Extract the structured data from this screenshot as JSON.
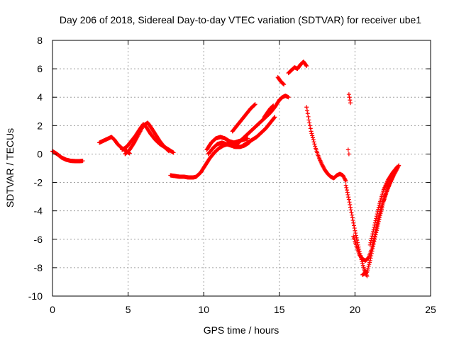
{
  "chart_data": {
    "type": "scatter",
    "title": "Day 206 of 2018, Sidereal Day-to-day VTEC variation (SDTVAR) for receiver ube1",
    "xlabel": "GPS time / hours",
    "ylabel": "SDTVAR / TECUs",
    "xlim": [
      0,
      25
    ],
    "ylim": [
      -10,
      8
    ],
    "xticks": [
      0,
      5,
      10,
      15,
      20,
      25
    ],
    "yticks": [
      -10,
      -8,
      -6,
      -4,
      -2,
      0,
      2,
      4,
      6,
      8
    ],
    "grid": true,
    "marker": "plus",
    "color": "#ff0000",
    "segments": [
      {
        "x": [
          0.0,
          0.3,
          0.6,
          0.9,
          1.2,
          1.5,
          1.8,
          2.0
        ],
        "y": [
          0.2,
          0.0,
          -0.25,
          -0.4,
          -0.48,
          -0.5,
          -0.5,
          -0.48
        ]
      },
      {
        "x": [
          3.1,
          3.4,
          3.7,
          3.9,
          4.1,
          4.3,
          4.6,
          4.9,
          5.1
        ],
        "y": [
          0.8,
          0.95,
          1.1,
          1.2,
          1.0,
          0.7,
          0.4,
          0.2,
          0.05
        ]
      },
      {
        "x": [
          4.6,
          4.9,
          5.2,
          5.5,
          5.8,
          6.0,
          6.2,
          6.5,
          6.8,
          7.1,
          7.4,
          7.7,
          8.0
        ],
        "y": [
          0.3,
          0.5,
          0.9,
          1.3,
          1.8,
          2.1,
          1.9,
          1.4,
          1.0,
          0.7,
          0.5,
          0.3,
          0.1
        ]
      },
      {
        "x": [
          4.8,
          5.1,
          5.4,
          5.7,
          6.0,
          6.3,
          6.5,
          6.8,
          7.1,
          7.4,
          7.7
        ],
        "y": [
          0.0,
          0.3,
          0.8,
          1.4,
          2.0,
          2.2,
          1.9,
          1.4,
          0.9,
          0.5,
          0.2
        ]
      },
      {
        "x": [
          7.8,
          8.1,
          8.4,
          8.7,
          9.0,
          9.3,
          9.5,
          9.8,
          10.1,
          10.4,
          10.7,
          11.0,
          11.3,
          11.6,
          12.0,
          12.3,
          12.6,
          12.9
        ],
        "y": [
          -1.5,
          -1.55,
          -1.6,
          -1.6,
          -1.65,
          -1.65,
          -1.6,
          -1.3,
          -0.8,
          -0.3,
          0.1,
          0.4,
          0.6,
          0.7,
          0.8,
          0.9,
          1.0,
          1.1
        ]
      },
      {
        "x": [
          10.2,
          10.5,
          10.8,
          11.1,
          11.4,
          11.7,
          12.0
        ],
        "y": [
          0.3,
          0.8,
          1.1,
          1.2,
          1.1,
          0.9,
          0.8
        ]
      },
      {
        "x": [
          10.3,
          10.6,
          10.9,
          11.2,
          11.5,
          11.8,
          12.1,
          12.4,
          12.7,
          13.0
        ],
        "y": [
          0.0,
          0.4,
          0.7,
          0.8,
          0.7,
          0.6,
          0.5,
          0.5,
          0.6,
          0.8
        ]
      },
      {
        "x": [
          11.9,
          12.2,
          12.5,
          12.8,
          13.1,
          13.4
        ],
        "y": [
          1.6,
          2.0,
          2.4,
          2.8,
          3.2,
          3.5
        ]
      },
      {
        "x": [
          12.0,
          12.3,
          12.6,
          12.9,
          13.2,
          13.5,
          13.8,
          14.1,
          14.4,
          14.7,
          15.0
        ],
        "y": [
          0.5,
          0.8,
          1.1,
          1.4,
          1.7,
          2.0,
          2.3,
          2.6,
          2.9,
          3.3,
          3.8
        ]
      },
      {
        "x": [
          12.6,
          12.9,
          13.2,
          13.5,
          13.8,
          14.1,
          14.4,
          14.7
        ],
        "y": [
          0.6,
          0.8,
          1.0,
          1.2,
          1.5,
          1.8,
          2.2,
          2.6
        ]
      },
      {
        "x": [
          14.0,
          14.2,
          14.4,
          14.6
        ],
        "y": [
          2.6,
          2.9,
          3.2,
          3.4
        ]
      },
      {
        "x": [
          14.9,
          15.1,
          15.3
        ],
        "y": [
          5.4,
          5.1,
          4.9
        ]
      },
      {
        "x": [
          15.0,
          15.2,
          15.4,
          15.6
        ],
        "y": [
          3.8,
          4.0,
          4.1,
          4.0
        ]
      },
      {
        "x": [
          15.6,
          15.8,
          16.0,
          16.2,
          16.4,
          16.6,
          16.8
        ],
        "y": [
          5.7,
          5.9,
          6.1,
          6.0,
          6.3,
          6.5,
          6.2
        ]
      },
      {
        "x": [
          16.8,
          16.95,
          17.1,
          17.25,
          17.4,
          17.6,
          17.8,
          18.0,
          18.2,
          18.4,
          18.6,
          18.8,
          19.0,
          19.2,
          19.4
        ],
        "y": [
          3.3,
          2.4,
          1.6,
          1.0,
          0.4,
          -0.2,
          -0.7,
          -1.1,
          -1.4,
          -1.6,
          -1.7,
          -1.5,
          -1.4,
          -1.5,
          -1.9
        ]
      },
      {
        "x": [
          19.6,
          19.7
        ],
        "y": [
          4.2,
          3.6
        ]
      },
      {
        "x": [
          19.55,
          19.6
        ],
        "y": [
          0.3,
          0.0
        ]
      },
      {
        "x": [
          19.4,
          19.6,
          19.8,
          20.0,
          20.2,
          20.4,
          20.6,
          20.8
        ],
        "y": [
          -2.2,
          -3.2,
          -4.3,
          -5.4,
          -6.4,
          -7.3,
          -8.1,
          -8.6
        ]
      },
      {
        "x": [
          19.9,
          20.1,
          20.3,
          20.5,
          20.7,
          20.9,
          21.1,
          21.3,
          21.5,
          21.7,
          22.0,
          22.3,
          22.6,
          22.9
        ],
        "y": [
          -5.8,
          -6.5,
          -7.1,
          -7.4,
          -7.5,
          -7.3,
          -6.7,
          -5.8,
          -4.8,
          -3.9,
          -2.9,
          -2.1,
          -1.4,
          -0.8
        ]
      },
      {
        "x": [
          20.5,
          20.8,
          21.0,
          21.3,
          21.6,
          21.9,
          22.2,
          22.5,
          22.8
        ],
        "y": [
          -8.5,
          -8.3,
          -7.5,
          -6.0,
          -4.6,
          -3.3,
          -2.3,
          -1.6,
          -1.0
        ]
      },
      {
        "x": [
          21.0,
          21.3,
          21.6,
          21.9,
          22.2,
          22.5,
          22.8
        ],
        "y": [
          -6.4,
          -5.0,
          -3.6,
          -2.5,
          -1.8,
          -1.3,
          -0.9
        ]
      }
    ]
  }
}
